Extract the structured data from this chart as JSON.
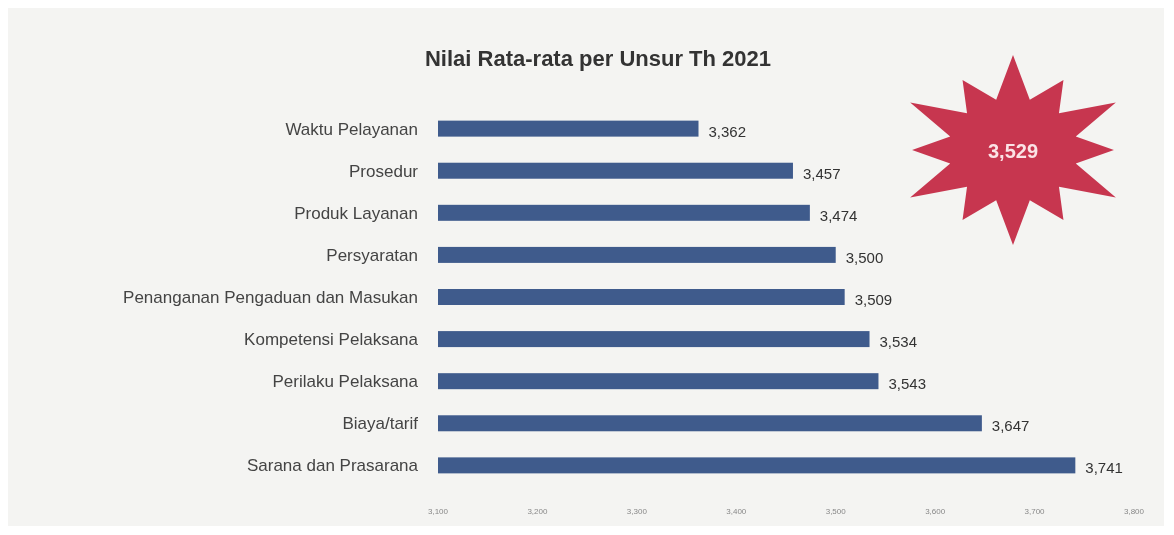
{
  "chart_data": {
    "type": "bar",
    "orientation": "horizontal",
    "title": "Nilai Rata-rata per Unsur Th 2021",
    "categories": [
      "Waktu Pelayanan",
      "Prosedur",
      "Produk Layanan",
      "Persyaratan",
      "Penanganan Pengaduan dan Masukan",
      "Kompetensi Pelaksana",
      "Perilaku Pelaksana",
      "Biaya/tarif",
      "Sarana dan Prasarana"
    ],
    "values": [
      3362,
      3457,
      3474,
      3500,
      3509,
      3534,
      3543,
      3647,
      3741
    ],
    "value_labels": [
      "3,362",
      "3,457",
      "3,474",
      "3,500",
      "3,509",
      "3,534",
      "3,543",
      "3,647",
      "3,741"
    ],
    "color": "#3f5b8c",
    "xlim": [
      3100,
      3800
    ],
    "xticks": [
      {
        "value": 3100,
        "label": "3,100"
      },
      {
        "value": 3200,
        "label": "3,200"
      },
      {
        "value": 3300,
        "label": "3,300"
      },
      {
        "value": 3400,
        "label": "3,400"
      },
      {
        "value": 3500,
        "label": "3,500"
      },
      {
        "value": 3600,
        "label": "3,600"
      },
      {
        "value": 3700,
        "label": "3,700"
      },
      {
        "value": 3800,
        "label": "3,800"
      }
    ],
    "annotations": [
      "3,529"
    ]
  }
}
